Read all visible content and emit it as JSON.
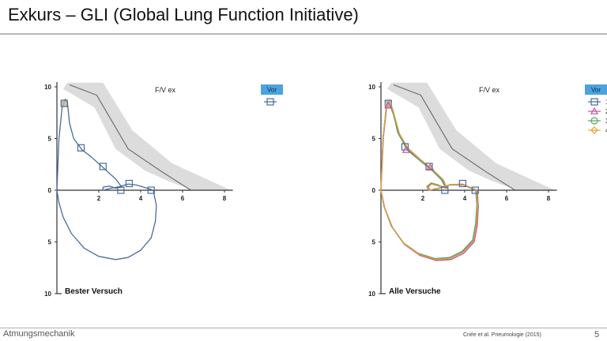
{
  "slide": {
    "title": "Exkurs – GLI (Global Lung Function Initiative)",
    "footer_left": "Atmungsmechanik",
    "citation": "Criée et al. Pneumologie (2015)",
    "page_number": "5"
  },
  "colors": {
    "predicted_band": "#dcdcdc",
    "predicted_line": "#707070",
    "axis": "#333333",
    "legend_header_bg": "#4aa3df",
    "series_1": "#4a6b9c",
    "series_2": "#c2549a",
    "series_3": "#5aa465",
    "series_4": "#e2a13a"
  },
  "chart_data": [
    {
      "type": "line",
      "chart_name": "F/V ex",
      "caption": "Bester Versuch",
      "x_ticks": [
        "2",
        "4",
        "6",
        "8"
      ],
      "y_ticks_upper": [
        "10",
        "5",
        "0"
      ],
      "y_ticks_lower": [
        "5",
        "10"
      ],
      "xlim": [
        0,
        8.4
      ],
      "ylim": [
        -10,
        10
      ],
      "legend": {
        "header": "Vor",
        "items": [
          {
            "name": "",
            "marker": "square",
            "color": "#4a6b9c"
          }
        ]
      },
      "predicted_mean": {
        "x": [
          0.6,
          1.9,
          3.4,
          5.0,
          6.4
        ],
        "y": [
          10.2,
          9.2,
          4.0,
          1.8,
          0.0
        ]
      },
      "predicted_band": {
        "x_upper": [
          0.5,
          2.2,
          3.6,
          5.5,
          8.3
        ],
        "y_upper": [
          10.4,
          10.4,
          5.8,
          2.6,
          0.0
        ],
        "x_lower": [
          6.5,
          5.3,
          4.2,
          2.8,
          1.8,
          0.3
        ],
        "y_lower": [
          0.0,
          0.9,
          1.9,
          4.0,
          8.0,
          9.8
        ]
      },
      "series": [
        {
          "color": "#4a6b9c",
          "x": [
            0,
            0.1,
            0.25,
            0.4,
            0.5,
            0.6,
            0.8,
            1.2,
            1.6,
            2.2,
            2.8,
            3.1,
            2.8,
            2.5,
            2.2,
            2.2,
            2.6,
            3.0,
            3.4,
            3.8,
            4.3,
            4.6,
            4.75,
            4.7,
            4.5,
            4.0,
            3.4,
            2.8,
            2.0,
            1.3,
            0.7,
            0.3,
            0.1,
            0
          ],
          "y": [
            0,
            5.0,
            8.0,
            8.8,
            8.5,
            6.5,
            5.0,
            3.9,
            3.3,
            2.2,
            1.1,
            0.3,
            0.2,
            0.4,
            0.3,
            0.0,
            0.2,
            0.35,
            0.6,
            0.5,
            0.2,
            0.0,
            -1.5,
            -3.0,
            -4.6,
            -5.8,
            -6.5,
            -6.7,
            -6.4,
            -5.6,
            -4.2,
            -2.6,
            -1.2,
            0
          ],
          "markers": {
            "x": [
              0.35,
              1.15,
              2.2,
              3.05,
              3.45,
              4.5
            ],
            "y": [
              8.4,
              4.1,
              2.3,
              0.0,
              0.65,
              0.0
            ]
          }
        }
      ]
    },
    {
      "type": "line",
      "chart_name": "F/V ex",
      "caption": "Alle Versuche",
      "x_ticks": [
        "2",
        "4",
        "6",
        "8"
      ],
      "y_ticks_upper": [
        "10",
        "5",
        "0"
      ],
      "y_ticks_lower": [
        "5",
        "10"
      ],
      "xlim": [
        0,
        8.4
      ],
      "ylim": [
        -10,
        10
      ],
      "legend": {
        "header": "Vor",
        "items": [
          {
            "name": "1",
            "marker": "square",
            "color": "#4a6b9c"
          },
          {
            "name": "2",
            "marker": "triangle",
            "color": "#c2549a"
          },
          {
            "name": "3",
            "marker": "circle",
            "color": "#5aa465"
          },
          {
            "name": "4",
            "marker": "diamond",
            "color": "#e2a13a"
          }
        ]
      },
      "predicted_mean": {
        "x": [
          0.6,
          1.9,
          3.4,
          5.0,
          6.4
        ],
        "y": [
          10.2,
          9.2,
          4.0,
          1.8,
          0.0
        ]
      },
      "predicted_band": {
        "x_upper": [
          0.5,
          2.2,
          3.6,
          5.5,
          8.3
        ],
        "y_upper": [
          10.4,
          10.4,
          5.8,
          2.6,
          0.0
        ],
        "x_lower": [
          6.5,
          5.3,
          4.2,
          2.8,
          1.8,
          0.3
        ],
        "y_lower": [
          0.0,
          0.9,
          1.9,
          4.0,
          8.0,
          9.8
        ]
      },
      "series": [
        {
          "name": "1",
          "color": "#4a6b9c",
          "x": [
            0,
            0.1,
            0.25,
            0.4,
            0.55,
            0.8,
            1.2,
            1.8,
            2.4,
            2.9,
            3.1,
            2.8,
            2.4,
            2.2,
            2.3,
            2.8,
            3.3,
            3.9,
            4.3,
            4.55,
            4.6,
            4.55,
            4.4,
            3.9,
            3.3,
            2.6,
            1.8,
            1.1,
            0.5,
            0.15,
            0
          ],
          "y": [
            0,
            5.0,
            8.0,
            8.6,
            7.8,
            5.6,
            4.1,
            3.0,
            2.0,
            1.0,
            0.2,
            0.4,
            0.6,
            0.3,
            0.0,
            0.2,
            0.5,
            0.55,
            0.2,
            0.0,
            -1.5,
            -3.3,
            -4.9,
            -6.0,
            -6.6,
            -6.7,
            -6.2,
            -5.2,
            -3.5,
            -1.6,
            0
          ],
          "markers": {
            "x": [
              0.35,
              1.15,
              2.3,
              3.05,
              3.9,
              4.5
            ],
            "y": [
              8.4,
              4.2,
              2.3,
              0.0,
              0.65,
              0.0
            ]
          }
        },
        {
          "name": "2",
          "color": "#c2549a",
          "x": [
            0,
            0.12,
            0.28,
            0.42,
            0.6,
            0.9,
            1.3,
            1.9,
            2.5,
            3.0,
            3.15,
            2.8,
            2.45,
            2.25,
            2.35,
            2.85,
            3.35,
            3.95,
            4.35,
            4.6,
            4.65,
            4.6,
            4.45,
            3.95,
            3.35,
            2.65,
            1.85,
            1.15,
            0.55,
            0.18,
            0
          ],
          "y": [
            0,
            5.2,
            8.1,
            8.3,
            7.3,
            5.2,
            3.8,
            2.8,
            1.8,
            0.9,
            0.2,
            0.45,
            0.65,
            0.3,
            0.0,
            0.25,
            0.55,
            0.5,
            0.2,
            0.0,
            -1.6,
            -3.4,
            -5.0,
            -6.1,
            -6.7,
            -6.8,
            -6.3,
            -5.3,
            -3.6,
            -1.7,
            0
          ],
          "markers": {
            "x": [
              0.35,
              1.2,
              2.35
            ],
            "y": [
              8.2,
              3.9,
              2.2
            ]
          }
        },
        {
          "name": "3",
          "color": "#5aa465",
          "x": [
            0,
            0.1,
            0.26,
            0.41,
            0.56,
            0.85,
            1.25,
            1.85,
            2.45,
            2.95,
            3.1,
            2.75,
            2.4,
            2.18,
            2.28,
            2.78,
            3.28,
            3.88,
            4.28,
            4.52,
            4.58,
            4.52,
            4.38,
            3.88,
            3.28,
            2.58,
            1.78,
            1.08,
            0.48,
            0.14,
            0
          ],
          "y": [
            0,
            5.1,
            8.0,
            8.5,
            7.6,
            5.4,
            4.0,
            2.9,
            1.9,
            0.95,
            0.2,
            0.5,
            0.7,
            0.35,
            0.0,
            0.2,
            0.5,
            0.6,
            0.25,
            0.0,
            -1.4,
            -3.2,
            -4.8,
            -5.9,
            -6.5,
            -6.6,
            -6.1,
            -5.1,
            -3.4,
            -1.5,
            0
          ],
          "markers": {
            "x": [],
            "y": []
          }
        },
        {
          "name": "4",
          "color": "#e2a13a",
          "x": [
            0,
            0.11,
            0.27,
            0.43,
            0.58,
            0.88,
            1.28,
            1.88,
            2.48,
            2.98,
            3.12,
            2.78,
            2.42,
            2.2,
            2.3,
            2.8,
            3.3,
            3.9,
            4.3,
            4.56,
            4.62,
            4.56,
            4.42,
            3.92,
            3.32,
            2.62,
            1.82,
            1.12,
            0.52,
            0.16,
            0
          ],
          "y": [
            0,
            5.3,
            8.2,
            8.6,
            7.7,
            5.5,
            4.1,
            3.0,
            2.0,
            1.0,
            0.25,
            0.45,
            0.6,
            0.3,
            0.0,
            0.25,
            0.55,
            0.6,
            0.25,
            0.0,
            -1.5,
            -3.3,
            -4.9,
            -6.0,
            -6.6,
            -6.7,
            -6.2,
            -5.2,
            -3.5,
            -1.6,
            0
          ],
          "markers": {
            "x": [],
            "y": []
          }
        }
      ]
    }
  ]
}
